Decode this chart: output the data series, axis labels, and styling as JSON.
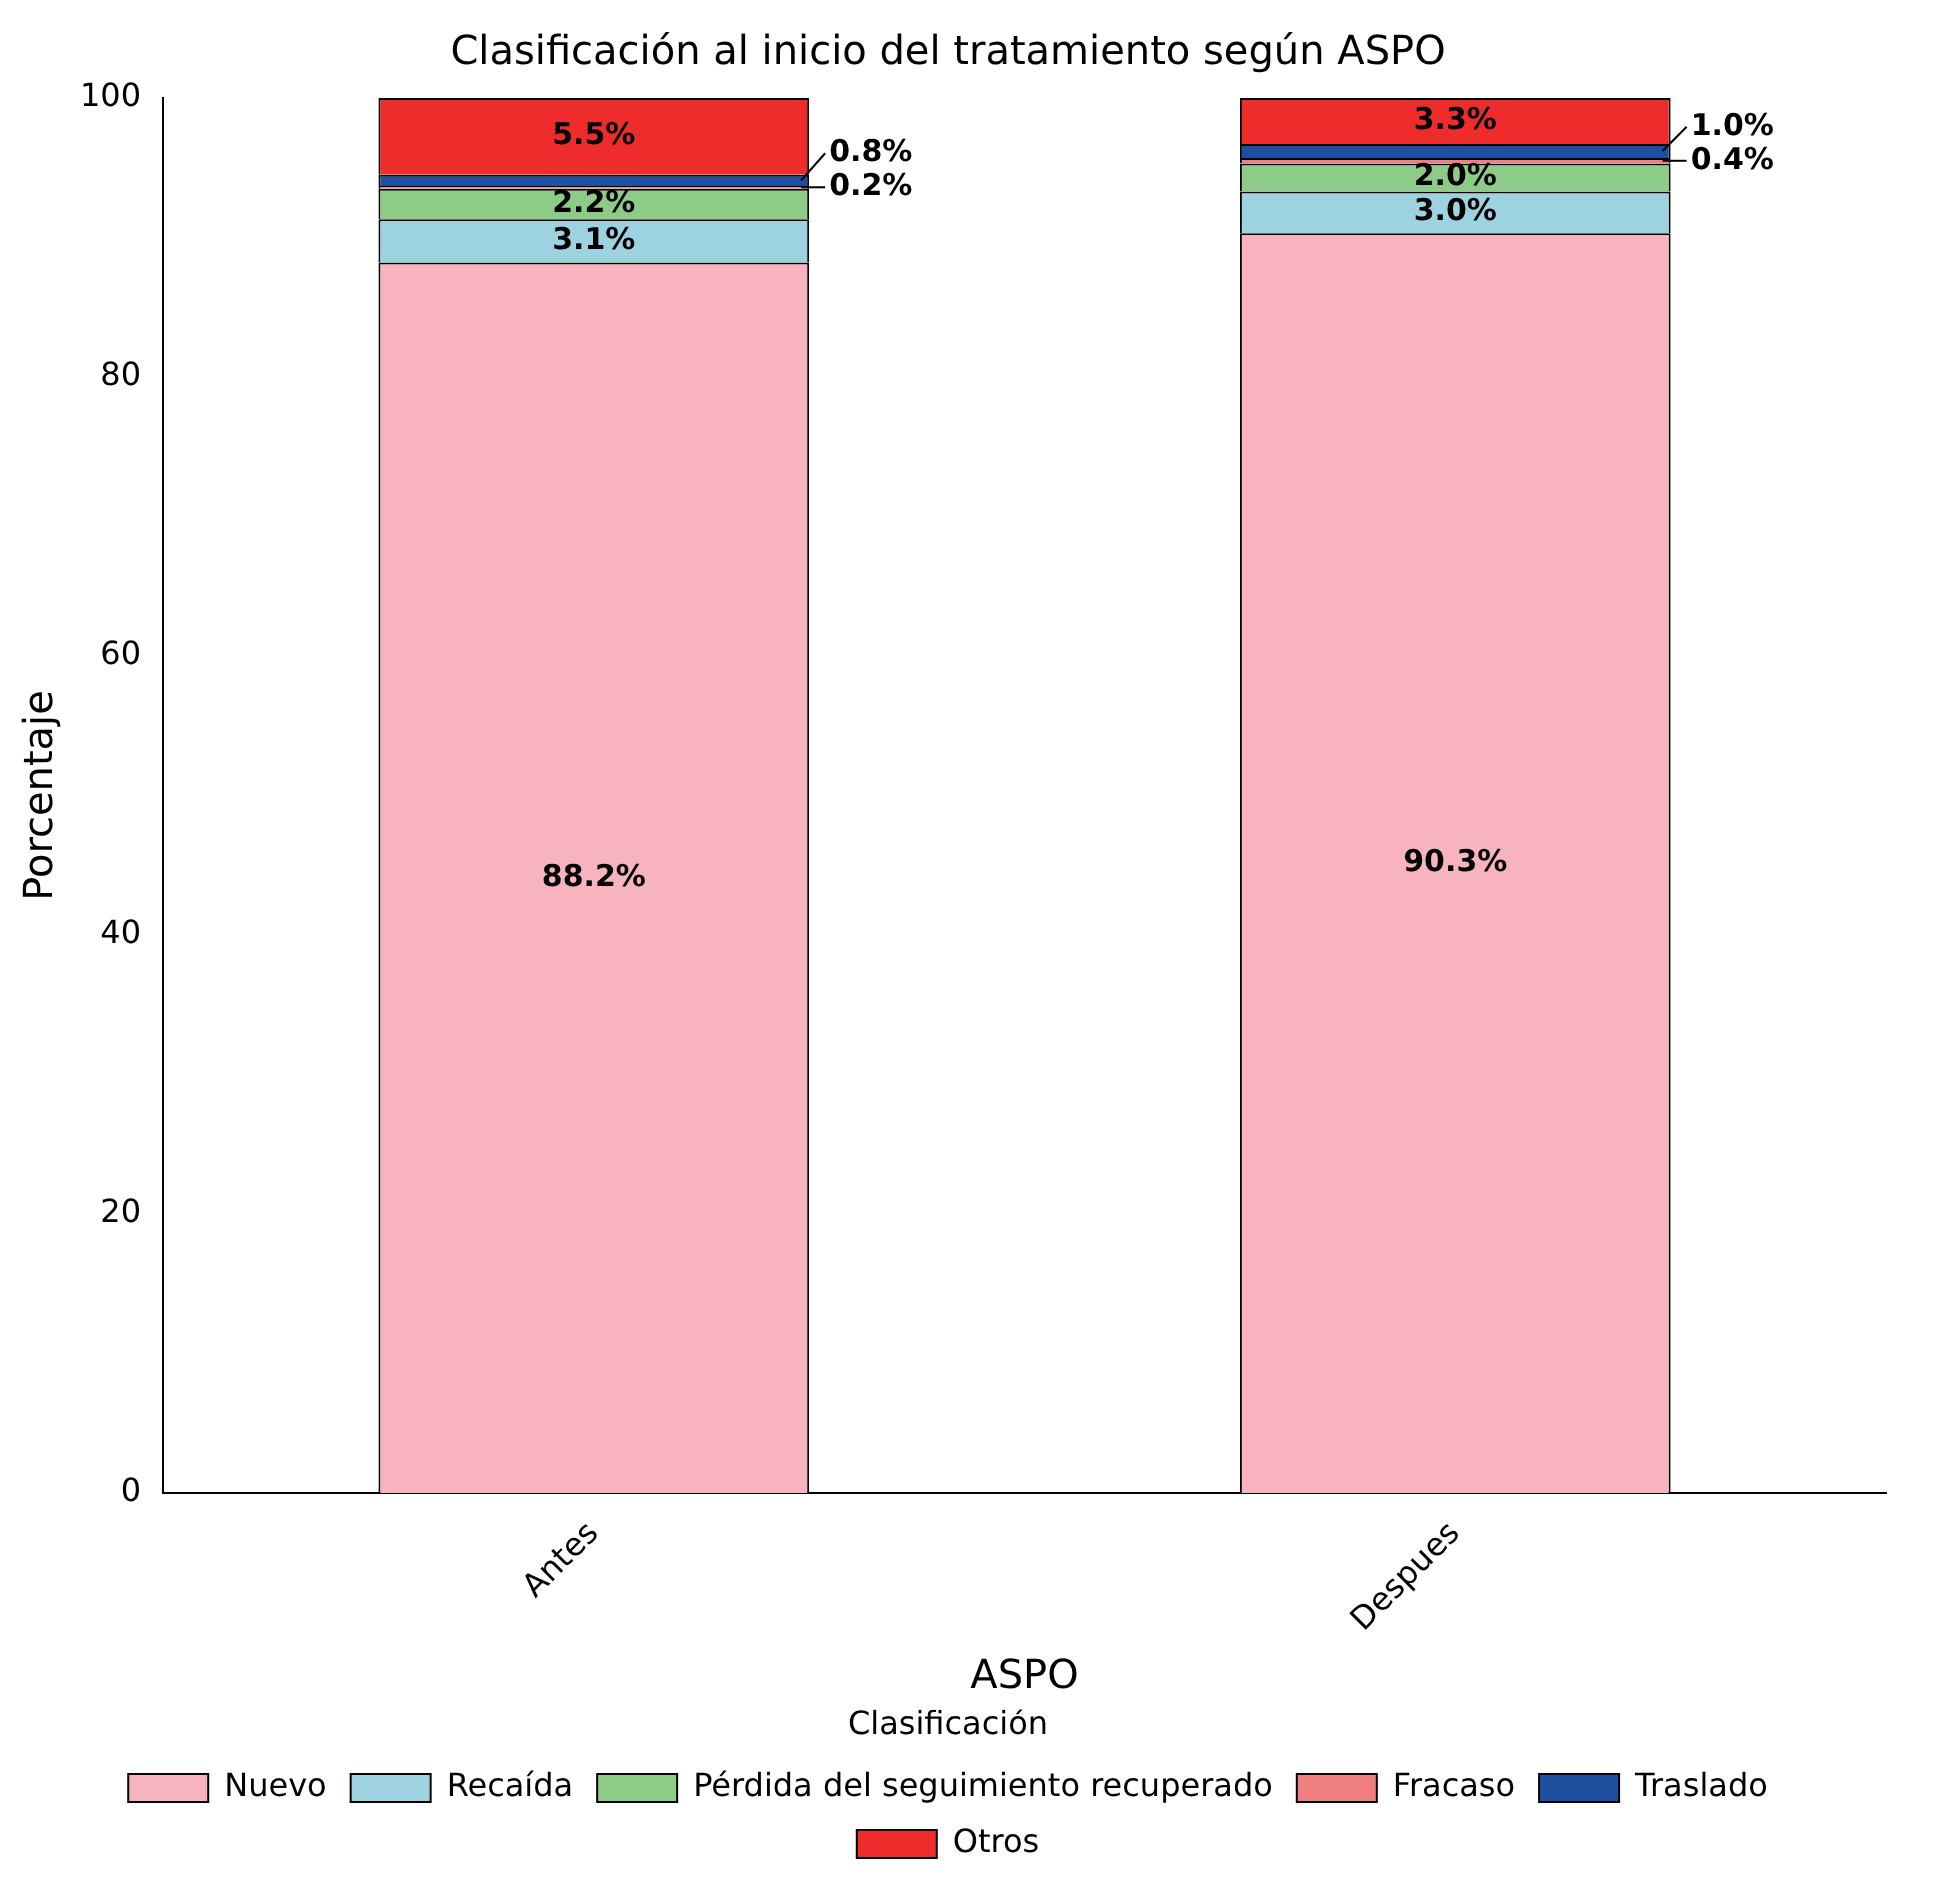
{
  "chart_data": {
    "type": "bar",
    "title": "Clasificación al inicio del tratamiento según ASPO",
    "xlabel": "ASPO",
    "ylabel": "Porcentaje",
    "legend_title": "Clasificación",
    "categories": [
      "Antes",
      "Despues"
    ],
    "stacked": true,
    "legend": "bottom",
    "grid": false,
    "ylim": [
      0,
      100
    ],
    "yticks": [
      0,
      20,
      40,
      60,
      80,
      100
    ],
    "series": [
      {
        "name": "Nuevo",
        "color": "#f7b3be",
        "values": [
          88.2,
          90.3
        ],
        "value_labels": [
          "88.2%",
          "90.3%"
        ]
      },
      {
        "name": "Recaída",
        "color": "#9dd3e0",
        "values": [
          3.1,
          3.0
        ],
        "value_labels": [
          "3.1%",
          "3.0%"
        ]
      },
      {
        "name": "Pérdida del seguimiento recuperado",
        "color": "#8ccc88",
        "values": [
          2.2,
          2.0
        ],
        "value_labels": [
          "2.2%",
          "2.0%"
        ]
      },
      {
        "name": "Fracaso",
        "color": "#f08080",
        "values": [
          0.2,
          0.4
        ],
        "value_labels": [
          "0.2%",
          "0.4%"
        ]
      },
      {
        "name": "Traslado",
        "color": "#1f4fa0",
        "values": [
          0.8,
          1.0
        ],
        "value_labels": [
          "0.8%",
          "1.0%"
        ]
      },
      {
        "name": "Otros",
        "color": "#ee2c2c",
        "values": [
          5.5,
          3.3
        ],
        "value_labels": [
          "5.5%",
          "3.3%"
        ]
      }
    ]
  }
}
